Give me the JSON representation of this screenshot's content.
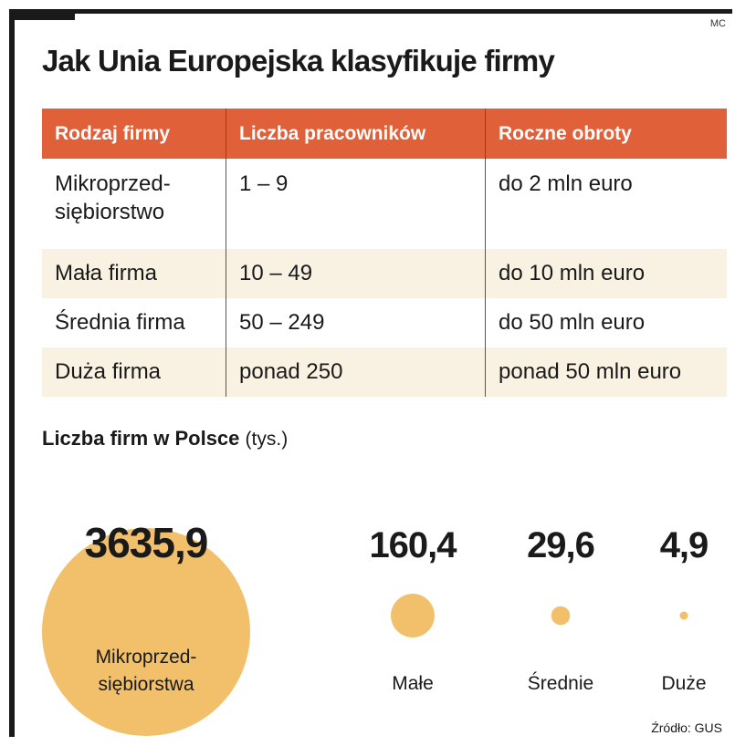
{
  "author": "MC",
  "title": "Jak Unia Europejska klasyfikuje firmy",
  "table": {
    "headers": [
      "Rodzaj firmy",
      "Liczba pracowników",
      "Roczne obroty"
    ],
    "rows": [
      [
        "Mikroprzed-\nsiębiorstwo",
        "1 – 9",
        "do 2 mln euro"
      ],
      [
        "Mała firma",
        "10 – 49",
        "do 10 mln euro"
      ],
      [
        "Średnia firma",
        "50 – 249",
        "do 50 mln euro"
      ],
      [
        "Duża firma",
        "ponad 250",
        "ponad 50 mln euro"
      ]
    ]
  },
  "section": {
    "title": "Liczba firm w Polsce",
    "unit": "(tys.)"
  },
  "colors": {
    "header_bg": "#e0603a",
    "row_alt": "#f9f1e1",
    "bubble": "#f2c06a"
  },
  "chart_data": {
    "type": "bubble",
    "unit": "tys.",
    "categories": [
      "Mikroprzed-\nsiębiorstwa",
      "Małe",
      "Średnie",
      "Duże"
    ],
    "values": [
      3635.9,
      160.4,
      29.6,
      4.9
    ],
    "value_labels": [
      "3635,9",
      "160,4",
      "29,6",
      "4,9"
    ]
  },
  "source": "Źródło: GUS"
}
